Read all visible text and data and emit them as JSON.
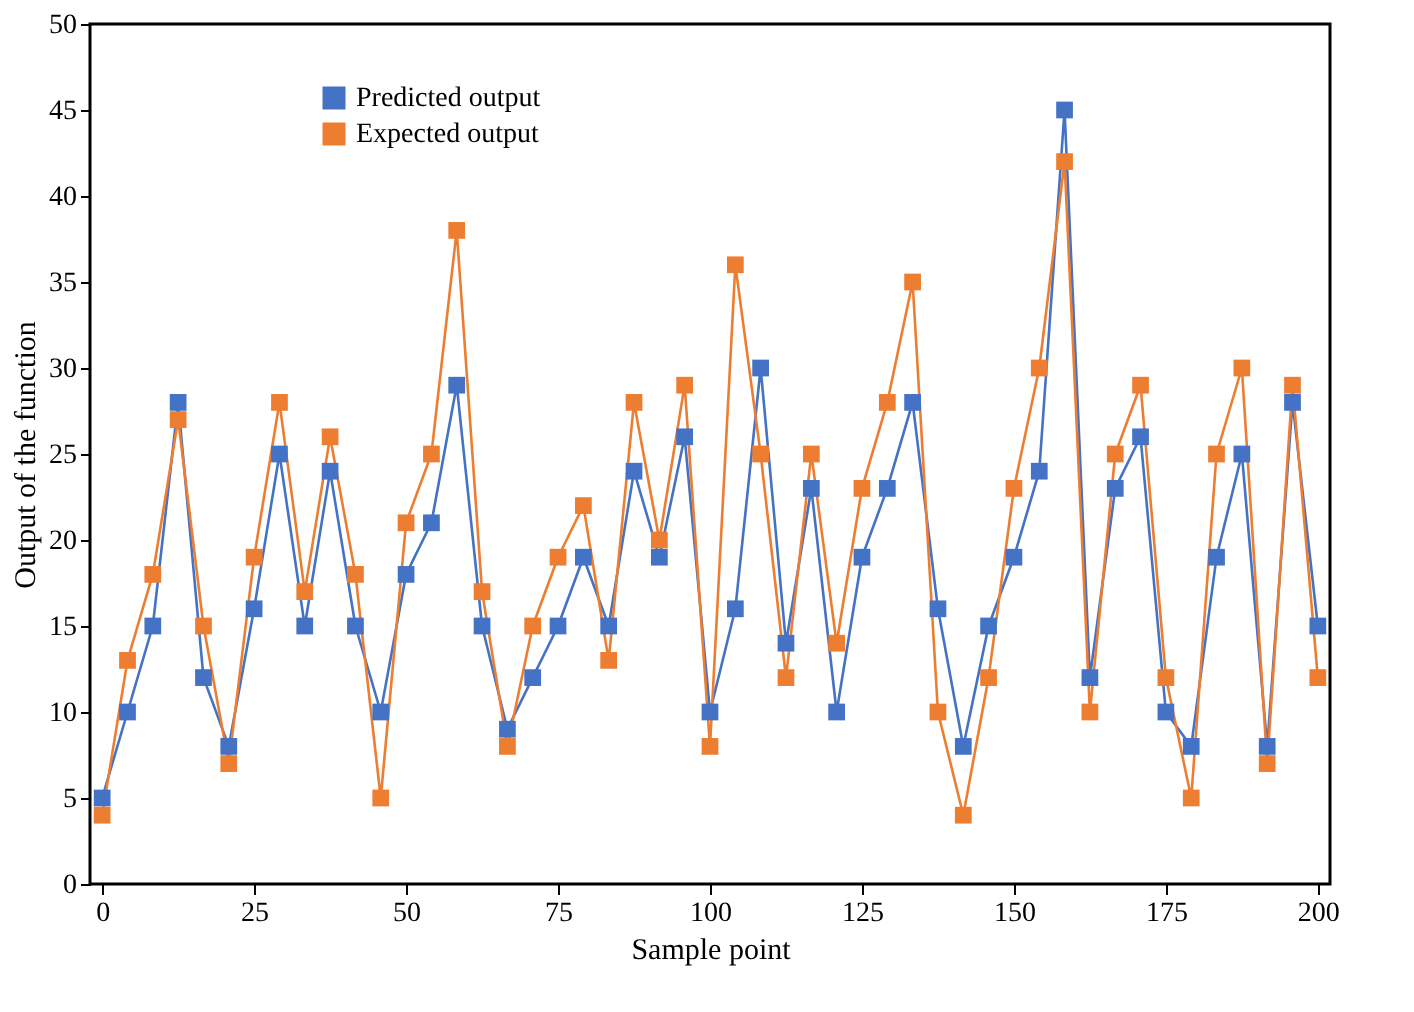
{
  "chart_data": {
    "type": "line",
    "xlabel": "Sample point",
    "ylabel": "Output of the function",
    "x": [
      0,
      4.17,
      8.33,
      12.5,
      16.67,
      20.83,
      25,
      29.17,
      33.33,
      37.5,
      41.67,
      45.83,
      50,
      54.17,
      58.33,
      62.5,
      66.67,
      70.83,
      75,
      79.17,
      83.33,
      87.5,
      91.67,
      95.83,
      100,
      104.17,
      108.33,
      112.5,
      116.67,
      120.83,
      125,
      129.17,
      133.33,
      137.5,
      141.67,
      145.83,
      150,
      154.17,
      158.33,
      162.5,
      166.67,
      170.83,
      175,
      179.17,
      183.33,
      187.5,
      191.67,
      195.83,
      200
    ],
    "series": [
      {
        "name": "Predicted output",
        "color": "#4472c4",
        "values": [
          5,
          10,
          15,
          28,
          12,
          8,
          16,
          25,
          15,
          24,
          15,
          10,
          18,
          21,
          29,
          15,
          9,
          12,
          15,
          19,
          15,
          24,
          19,
          26,
          10,
          16,
          30,
          14,
          23,
          10,
          19,
          23,
          28,
          16,
          8,
          15,
          19,
          24,
          45,
          12,
          23,
          26,
          10,
          8,
          19,
          25,
          8,
          28,
          15
        ]
      },
      {
        "name": "Expected output",
        "color": "#ed7d31",
        "values": [
          4,
          13,
          18,
          27,
          15,
          7,
          19,
          28,
          17,
          26,
          18,
          5,
          21,
          25,
          38,
          17,
          8,
          15,
          19,
          22,
          13,
          28,
          20,
          29,
          8,
          36,
          25,
          12,
          25,
          14,
          23,
          28,
          35,
          10,
          4,
          12,
          23,
          30,
          42,
          10,
          25,
          29,
          12,
          5,
          25,
          30,
          7,
          29,
          12
        ]
      }
    ],
    "xlim": [
      -2,
      202
    ],
    "xticks": [
      0,
      25,
      50,
      75,
      100,
      125,
      150,
      175,
      200
    ],
    "ylim": [
      0,
      50
    ],
    "yticks": [
      0,
      5,
      10,
      15,
      20,
      25,
      30,
      35,
      40,
      45,
      50
    ],
    "grid": false,
    "legend": "top left",
    "marker": "square",
    "line_style": "solid"
  }
}
